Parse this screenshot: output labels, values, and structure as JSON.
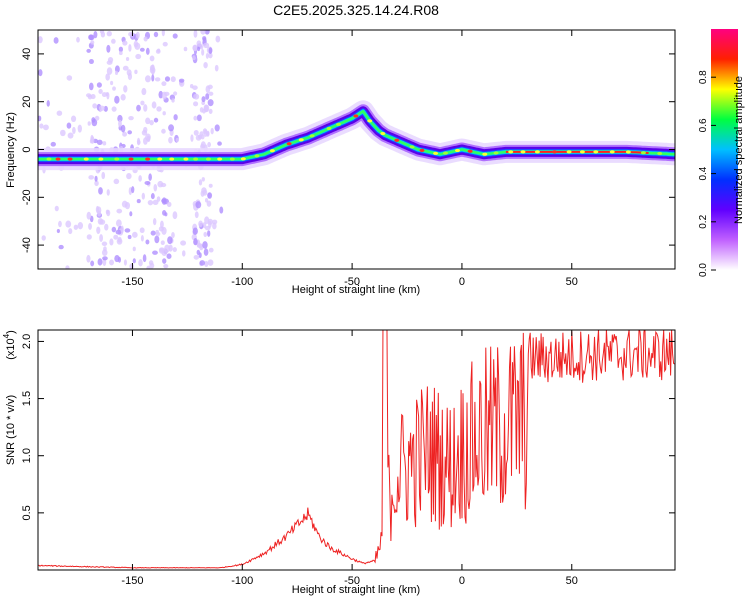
{
  "title": "C2E5.2025.325.14.24.R08",
  "chart_data": [
    {
      "type": "heatmap",
      "name": "spectrogram",
      "xlabel": "Height of straight line (km)",
      "ylabel": "Frequency (Hz)",
      "xlim": [
        -193,
        97
      ],
      "ylim": [
        -50,
        50
      ],
      "xticks": [
        -150,
        -100,
        -50,
        0,
        50
      ],
      "yticks": [
        -40,
        -20,
        0,
        20,
        40
      ],
      "ridge": {
        "x": [
          -193,
          -150,
          -110,
          -100,
          -90,
          -80,
          -70,
          -60,
          -50,
          -45,
          -42,
          -38,
          -35,
          -30,
          -25,
          -20,
          -15,
          -10,
          -5,
          0,
          5,
          10,
          20,
          30,
          50,
          75,
          97
        ],
        "y": [
          -4,
          -4,
          -4,
          -4,
          -2,
          2,
          5,
          9,
          13,
          16,
          12,
          8,
          6,
          4,
          2,
          0,
          -1,
          -2,
          -1,
          0,
          -1,
          -2,
          -1,
          -1,
          -1,
          -1,
          -2
        ]
      },
      "colorbar": {
        "label": "Normalized spectral amplitude",
        "range": [
          0,
          1
        ],
        "ticks": [
          0.0,
          0.2,
          0.4,
          0.6,
          0.8
        ],
        "colors": [
          "#ffffff",
          "#c060ff",
          "#6000ff",
          "#0030ff",
          "#00c0ff",
          "#00ff40",
          "#ffff00",
          "#ff2000",
          "#ff0080"
        ]
      }
    },
    {
      "type": "line",
      "name": "snr",
      "xlabel": "Height of straight line (km)",
      "ylabel": "SNR (10 * v/v)",
      "scale_label": "(x10",
      "scale_exponent": "4",
      "xlim": [
        -193,
        97
      ],
      "ylim": [
        0,
        2.1
      ],
      "xticks": [
        -150,
        -100,
        -50,
        0,
        50
      ],
      "yticks": [
        0.5,
        1.0,
        1.5,
        2.0
      ],
      "ytick_labels": [
        "0.5",
        "1.0",
        "1.5",
        "2.0"
      ],
      "color": "#ee2222",
      "envelope": {
        "x": [
          -193,
          -150,
          -110,
          -100,
          -90,
          -80,
          -75,
          -70,
          -65,
          -60,
          -55,
          -50,
          -45,
          -40,
          -37,
          -35,
          -33,
          -30,
          -25,
          -20,
          -15,
          -10,
          -5,
          0,
          5,
          10,
          15,
          20,
          25,
          30,
          40,
          50,
          60,
          70,
          80,
          90,
          97
        ],
        "y": [
          0.04,
          0.02,
          0.02,
          0.05,
          0.15,
          0.3,
          0.4,
          0.5,
          0.3,
          0.2,
          0.15,
          0.1,
          0.06,
          0.08,
          0.3,
          1.1,
          0.9,
          1.2,
          1.3,
          1.4,
          1.5,
          1.4,
          1.3,
          1.5,
          1.6,
          1.7,
          1.75,
          1.8,
          1.85,
          1.9,
          1.9,
          1.92,
          1.93,
          1.93,
          1.94,
          1.94,
          1.93
        ]
      }
    }
  ]
}
